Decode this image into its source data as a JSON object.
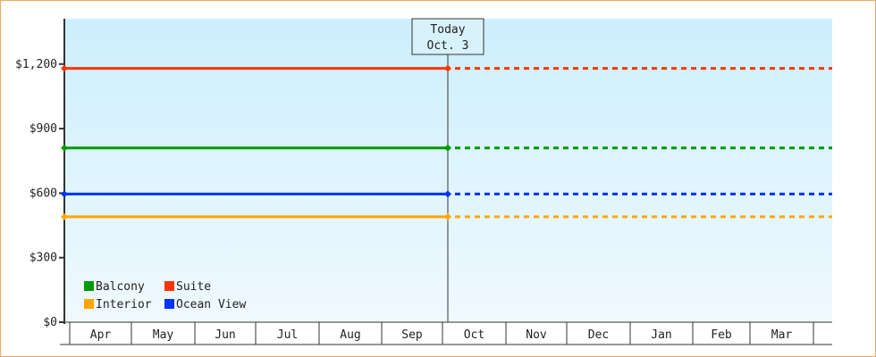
{
  "chart_data": {
    "type": "line",
    "title": "",
    "xlabel": "",
    "ylabel": "",
    "ylim": [
      0,
      1410
    ],
    "y_ticks": [
      0,
      300,
      600,
      900,
      1200
    ],
    "y_tick_labels": [
      "$0",
      "$300",
      "$600",
      "$900",
      "$1,200"
    ],
    "x_categories": [
      "Apr",
      "May",
      "Jun",
      "Jul",
      "Aug",
      "Sep",
      "Oct",
      "Nov",
      "Dec",
      "Jan",
      "Feb",
      "Mar"
    ],
    "today_marker": {
      "line1": "Today",
      "line2": "Oct. 3"
    },
    "grid": false,
    "legend_placement": "bottom-left",
    "note": "",
    "series": [
      {
        "name": "Balcony",
        "color": "#009900",
        "value": 810
      },
      {
        "name": "Suite",
        "color": "#ff3300",
        "value": 1180
      },
      {
        "name": "Interior",
        "color": "#ffa500",
        "value": 490
      },
      {
        "name": "Ocean View",
        "color": "#0033ff",
        "value": 596
      }
    ],
    "solid_until": "today",
    "dashed_after": "today"
  }
}
